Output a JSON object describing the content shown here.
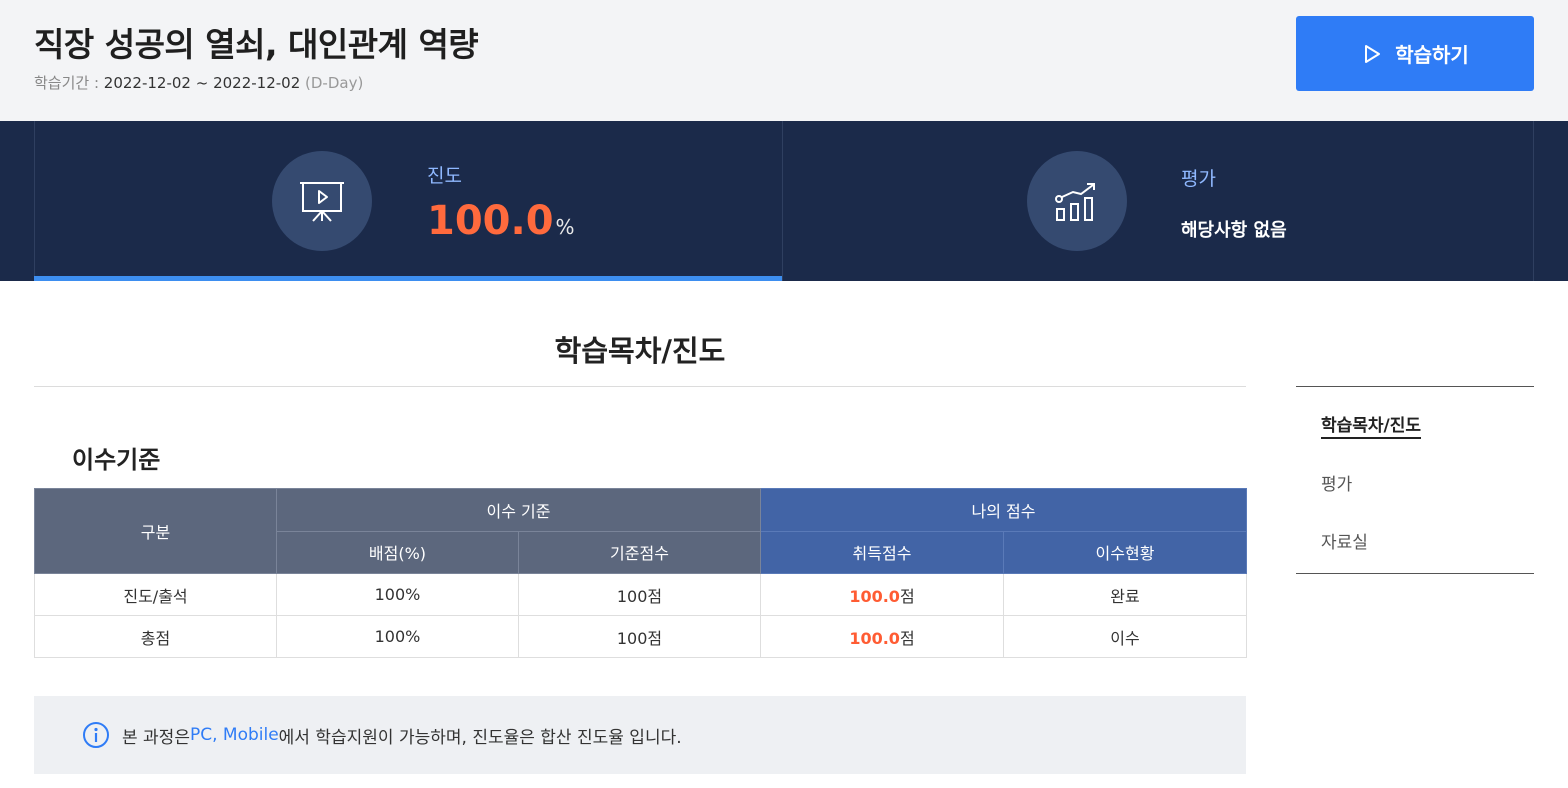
{
  "header": {
    "title": "직장 성공의 열쇠, 대인관계 역량",
    "period_label": "학습기간 : ",
    "period_value": "2022-12-02 ~ 2022-12-02",
    "dday": "(D-Day)",
    "study_button_label": "학습하기"
  },
  "stats": {
    "progress": {
      "label": "진도",
      "value": "100.0",
      "unit": "%",
      "icon": "presentation-icon",
      "fill": 1.0
    },
    "evaluation": {
      "label": "평가",
      "text": "해당사항 없음",
      "icon": "chart-growth-icon"
    }
  },
  "section": {
    "title": "학습목차/진도",
    "criteria_title": "이수기준"
  },
  "table": {
    "headers": {
      "category": "구분",
      "criteria_group": "이수 기준",
      "my_score_group": "나의 점수",
      "weight": "배점(%)",
      "base_score": "기준점수",
      "obtained_score": "취득점수",
      "status": "이수현황"
    },
    "rows": [
      {
        "category": "진도/출석",
        "weight": "100%",
        "base_score": "100점",
        "obtained_value": "100.0",
        "obtained_unit": "점",
        "status": "완료"
      },
      {
        "category": "총점",
        "weight": "100%",
        "base_score": "100점",
        "obtained_value": "100.0",
        "obtained_unit": "점",
        "status": "이수"
      }
    ]
  },
  "notice": {
    "prefix": "본 과정은 ",
    "highlight": "PC, Mobile",
    "suffix": " 에서 학습지원이 가능하며, 진도율은 합산 진도율 입니다."
  },
  "side_nav": {
    "items": [
      {
        "label": "학습목차/진도",
        "active": true
      },
      {
        "label": "평가",
        "active": false
      },
      {
        "label": "자료실",
        "active": false
      }
    ]
  },
  "colors": {
    "accent_blue": "#2f7cf6",
    "dark_band": "#1b2a4a",
    "score_orange": "#ff5c33",
    "progress_bar": "#3d8ef0"
  }
}
